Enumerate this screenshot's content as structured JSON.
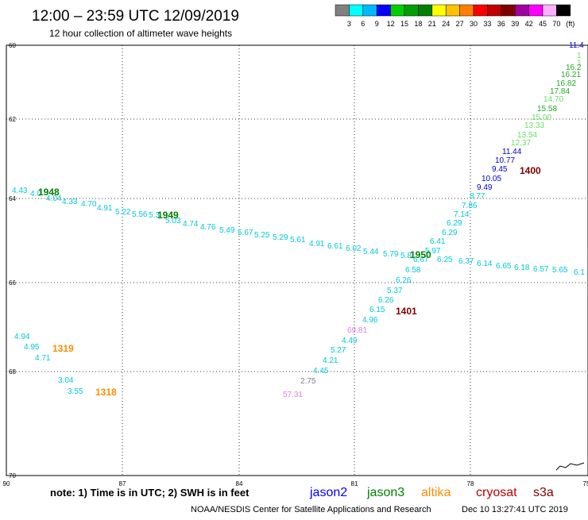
{
  "header": {
    "title": "12:00 – 23:59 UTC 12/09/2019",
    "subtitle": "12 hour collection of altimeter wave heights"
  },
  "colorbar": {
    "colors": [
      "#808080",
      "#00ffff",
      "#00b8ff",
      "#0000ff",
      "#00d000",
      "#00a000",
      "#008000",
      "#ffff00",
      "#ffc000",
      "#ff8000",
      "#ff0000",
      "#c00000",
      "#800000",
      "#a000a0",
      "#ff00ff",
      "#ffb0ff",
      "#000000"
    ],
    "labels": [
      "3",
      "6",
      "9",
      "12",
      "15",
      "18",
      "21",
      "24",
      "27",
      "30",
      "33",
      "36",
      "39",
      "42",
      "45",
      "70",
      "(ft)"
    ]
  },
  "map": {
    "lat_labels": [
      "60",
      "62",
      "64",
      "66",
      "68",
      "70"
    ],
    "lon_labels": [
      "90",
      "87",
      "84",
      "81",
      "78",
      "75"
    ],
    "lat_ticks": [
      -60,
      -62,
      -64,
      -66,
      -68,
      -70
    ],
    "lon_ticks": [
      -90,
      -87,
      -84,
      -81,
      -78,
      -75
    ]
  },
  "chart_data": {
    "type": "scatter",
    "points": [
      {
        "label": "11.4",
        "color": "#0000cc"
      },
      {
        "label": "1",
        "color": "#66dd66"
      },
      {
        "label": "1",
        "color": "#66dd66"
      },
      {
        "label": "16.2",
        "color": "#22aa22"
      },
      {
        "label": "16.21",
        "color": "#22aa22"
      },
      {
        "label": "16.82",
        "color": "#22aa22"
      },
      {
        "label": "17.84",
        "color": "#22aa22"
      },
      {
        "label": "14.70",
        "color": "#66dd66"
      },
      {
        "label": "15.58",
        "color": "#22aa22"
      },
      {
        "label": "15.00",
        "color": "#66dd66"
      },
      {
        "label": "13.33",
        "color": "#66dd66"
      },
      {
        "label": "13.54",
        "color": "#66dd66"
      },
      {
        "label": "12.37",
        "color": "#66dd66"
      },
      {
        "label": "11.44",
        "color": "#0000cc"
      },
      {
        "label": "10.77",
        "color": "#0000cc"
      },
      {
        "label": "9.45",
        "color": "#0000cc"
      },
      {
        "label": "10.05",
        "color": "#0000cc"
      },
      {
        "label": "9.49",
        "color": "#0000cc"
      },
      {
        "label": "8.77",
        "color": "#00c8d8"
      },
      {
        "label": "7.86",
        "color": "#00c8d8"
      },
      {
        "label": "7.14",
        "color": "#00c8d8"
      },
      {
        "label": "6.29",
        "color": "#00c8d8"
      },
      {
        "label": "6.29",
        "color": "#00c8d8"
      },
      {
        "label": "6.41",
        "color": "#00c8d8"
      },
      {
        "label": "5.97",
        "color": "#00c8d8"
      },
      {
        "label": "6.67",
        "color": "#00c8d8"
      },
      {
        "label": "6.58",
        "color": "#00c8d8"
      },
      {
        "label": "6.26",
        "color": "#00c8d8"
      },
      {
        "label": "5.37",
        "color": "#00c8d8"
      },
      {
        "label": "6.26",
        "color": "#00c8d8"
      },
      {
        "label": "6.15",
        "color": "#00c8d8"
      },
      {
        "label": "4.96",
        "color": "#00c8d8"
      },
      {
        "label": "69.81",
        "color": "#e080e0"
      },
      {
        "label": "4.49",
        "color": "#00c8d8"
      },
      {
        "label": "5.27",
        "color": "#00c8d8"
      },
      {
        "label": "4.21",
        "color": "#00c8d8"
      },
      {
        "label": "4.45",
        "color": "#00c8d8"
      },
      {
        "label": "2.75",
        "color": "#808080"
      },
      {
        "label": "57.31",
        "color": "#e080e0"
      },
      {
        "label": "4.43",
        "color": "#00c8d8"
      },
      {
        "label": "4.0",
        "color": "#00c8d8"
      },
      {
        "label": "4.04",
        "color": "#00c8d8"
      },
      {
        "label": "4.33",
        "color": "#00c8d8"
      },
      {
        "label": "4.70",
        "color": "#00c8d8"
      },
      {
        "label": "4.91",
        "color": "#00c8d8"
      },
      {
        "label": "5.22",
        "color": "#00c8d8"
      },
      {
        "label": "5.56",
        "color": "#00c8d8"
      },
      {
        "label": "5.3",
        "color": "#00c8d8"
      },
      {
        "label": "5.03",
        "color": "#00c8d8"
      },
      {
        "label": "4.74",
        "color": "#00c8d8"
      },
      {
        "label": "4.76",
        "color": "#00c8d8"
      },
      {
        "label": "5.49",
        "color": "#00c8d8"
      },
      {
        "label": "5.67",
        "color": "#00c8d8"
      },
      {
        "label": "5.25",
        "color": "#00c8d8"
      },
      {
        "label": "5.29",
        "color": "#00c8d8"
      },
      {
        "label": "5.61",
        "color": "#00c8d8"
      },
      {
        "label": "4.91",
        "color": "#00c8d8"
      },
      {
        "label": "6.61",
        "color": "#00c8d8"
      },
      {
        "label": "6.02",
        "color": "#00c8d8"
      },
      {
        "label": "5.44",
        "color": "#00c8d8"
      },
      {
        "label": "5.79",
        "color": "#00c8d8"
      },
      {
        "label": "5.8",
        "color": "#00c8d8"
      },
      {
        "label": "6.25",
        "color": "#00c8d8"
      },
      {
        "label": "6.37",
        "color": "#00c8d8"
      },
      {
        "label": "6.14",
        "color": "#00c8d8"
      },
      {
        "label": "6.65",
        "color": "#00c8d8"
      },
      {
        "label": "6.18",
        "color": "#00c8d8"
      },
      {
        "label": "6.57",
        "color": "#00c8d8"
      },
      {
        "label": "5.65",
        "color": "#00c8d8"
      },
      {
        "label": "6.1",
        "color": "#00c8d8"
      },
      {
        "label": "4.94",
        "color": "#00c8d8"
      },
      {
        "label": "4.95",
        "color": "#00c8d8"
      },
      {
        "label": "4.71",
        "color": "#00c8d8"
      },
      {
        "label": "3.04",
        "color": "#00c8d8"
      },
      {
        "label": "3.55",
        "color": "#00c8d8"
      }
    ],
    "time_labels": [
      {
        "label": "1400",
        "color": "#800000"
      },
      {
        "label": "1948",
        "color": "#008000"
      },
      {
        "label": "1949",
        "color": "#008000"
      },
      {
        "label": "1950",
        "color": "#008000"
      },
      {
        "label": "1401",
        "color": "#800000"
      },
      {
        "label": "1319",
        "color": "#ff8c00"
      },
      {
        "label": "1318",
        "color": "#ff8c00"
      }
    ]
  },
  "footer": {
    "note": "note: 1) Time is in UTC; 2) SWH is in feet",
    "legend": [
      {
        "label": "jason2",
        "color": "#0000ff"
      },
      {
        "label": "jason3",
        "color": "#008000"
      },
      {
        "label": "altika",
        "color": "#ff8c00"
      },
      {
        "label": "cryosat",
        "color": "#c00000"
      },
      {
        "label": "s3a",
        "color": "#800000"
      }
    ],
    "credit": "NOAA/NESDIS Center for Satellite Applications and Research",
    "timestamp": "Dec 10 13:27:41 UTC 2019"
  }
}
